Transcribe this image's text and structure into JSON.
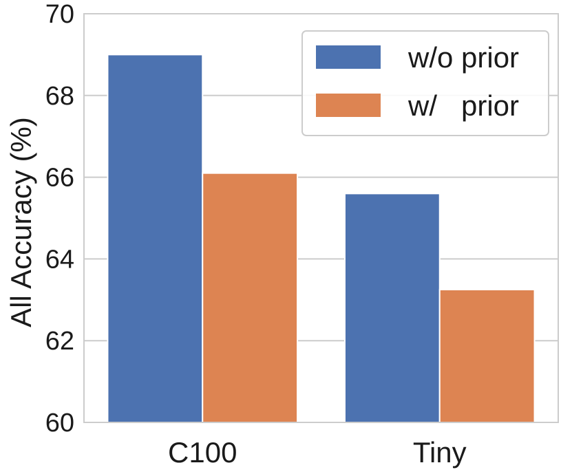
{
  "chart_data": {
    "type": "bar",
    "title": "",
    "xlabel": "",
    "ylabel": "All Accuracy (%)",
    "categories": [
      "C100",
      "Tiny"
    ],
    "series": [
      {
        "name": "w/o prior",
        "values": [
          69.0,
          65.6
        ],
        "color": "#4c72b0"
      },
      {
        "name": "w/   prior",
        "values": [
          66.1,
          63.25
        ],
        "color": "#dd8452"
      }
    ],
    "ylim": [
      60,
      70
    ],
    "yticks": [
      "60",
      "62",
      "64",
      "66",
      "68",
      "70"
    ],
    "grid": true,
    "legend_position": "top-right"
  }
}
